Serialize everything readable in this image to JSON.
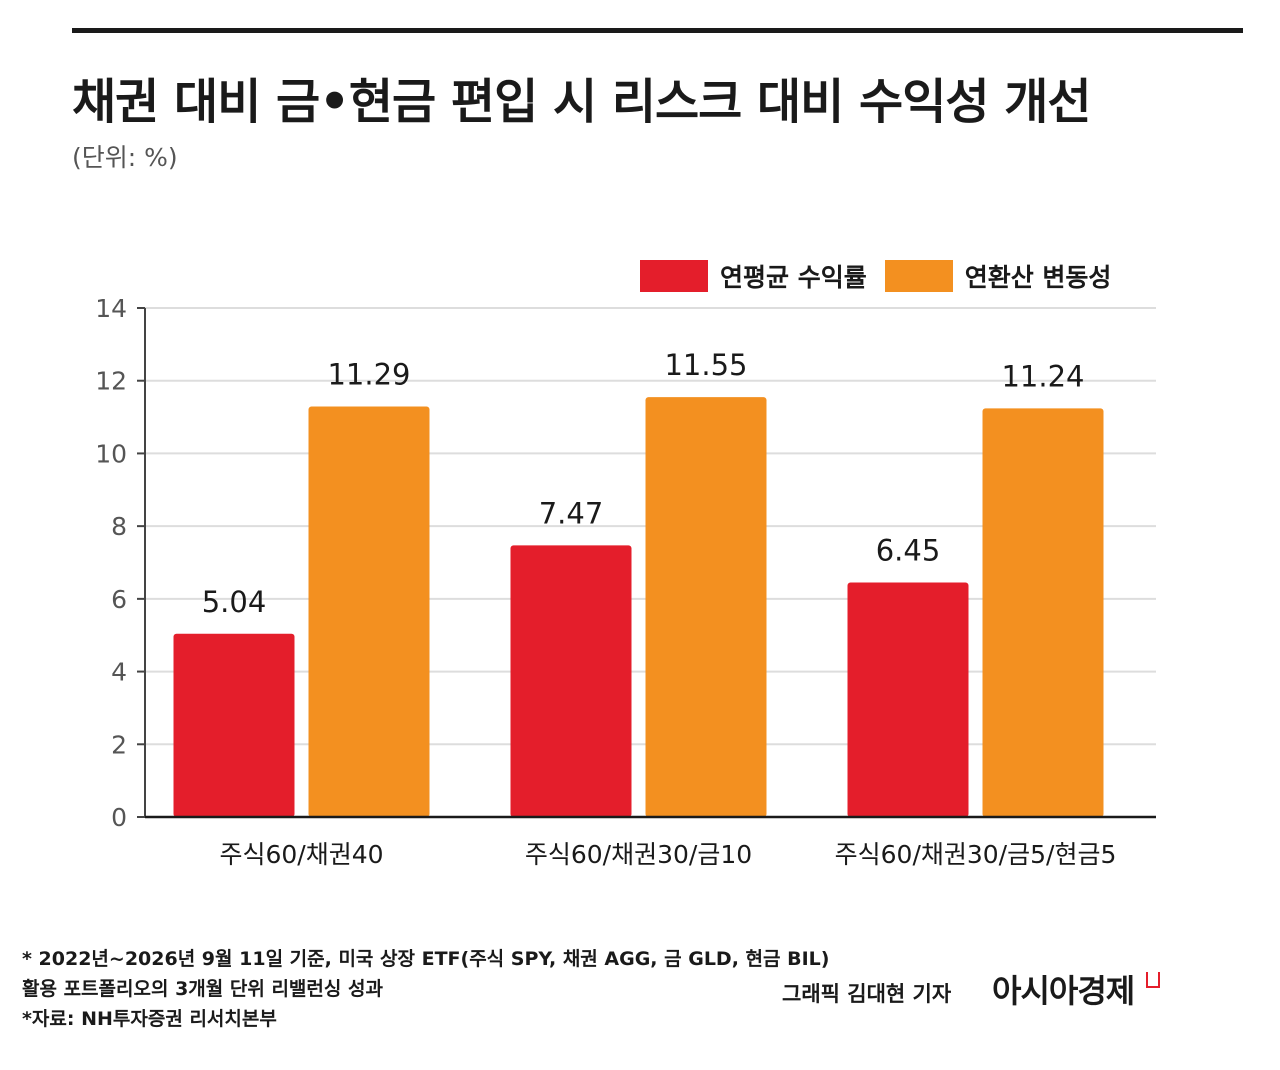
{
  "title": "채권 대비 금•현금 편입 시 리스크 대비 수익성 개선",
  "subtitle": "(단위: %)",
  "colors": {
    "return": "#e41e2b",
    "volatility": "#f39020",
    "axis": "#444444",
    "grid": "#dddddd"
  },
  "chart_data": {
    "type": "bar",
    "categories": [
      "주식60/채권40",
      "주식60/채권30/금10",
      "주식60/채권30/금5/현금5"
    ],
    "series": [
      {
        "name": "연평균 수익률",
        "values": [
          5.04,
          7.47,
          6.45
        ],
        "labels": [
          "5.04",
          "7.47",
          "6.45"
        ]
      },
      {
        "name": "연환산 변동성",
        "values": [
          11.29,
          11.55,
          11.24
        ],
        "labels": [
          "11.29",
          "11.55",
          "11.24"
        ]
      }
    ],
    "ylim": [
      0,
      14
    ],
    "yticks": [
      "0",
      "2",
      "4",
      "6",
      "8",
      "10",
      "12",
      "14"
    ],
    "grid": true,
    "legend_position": "top-right"
  },
  "footnotes": [
    "* 2022년~2026년 9월 11일 기준, 미국 상장 ETF(주식 SPY, 채권 AGG, 금 GLD, 현금 BIL)",
    "활용 포트폴리오의 3개월 단위 리밸런싱 성과",
    "*자료: NH투자증권 리서치본부"
  ],
  "credit": "그래픽  김대현 기자",
  "brand": "아시아경제"
}
